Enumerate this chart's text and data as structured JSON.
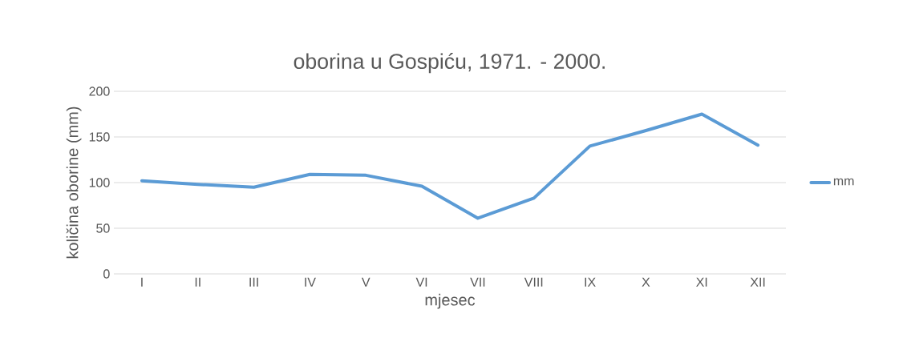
{
  "chart_data": {
    "type": "line",
    "title": "oborina u Gospiću, 1971. - 2000.",
    "xlabel": "mjesec",
    "ylabel": "količina oborine (mm)",
    "categories": [
      "I",
      "II",
      "III",
      "IV",
      "V",
      "VI",
      "VII",
      "VIII",
      "IX",
      "X",
      "XI",
      "XII"
    ],
    "series": [
      {
        "name": "mm",
        "color": "#5b9bd5",
        "values": [
          102,
          98,
          95,
          109,
          108,
          96,
          61,
          83,
          140,
          157,
          175,
          141
        ]
      }
    ],
    "ylim": [
      0,
      200
    ],
    "yticks": [
      0,
      50,
      100,
      150,
      200
    ],
    "grid": "y",
    "legend": "right",
    "marker": "none",
    "line_style": "solid"
  }
}
